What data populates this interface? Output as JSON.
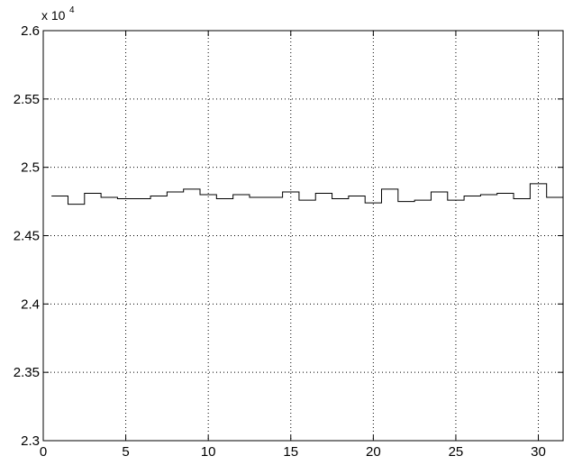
{
  "chart_data": {
    "type": "line",
    "style": "stairs",
    "title": "",
    "xlabel": "",
    "ylabel": "",
    "xlim": [
      0,
      31.5
    ],
    "ylim": [
      23000,
      26000
    ],
    "grid": true,
    "grid_style": "dotted",
    "line_color": "#000000",
    "x_ticks": [
      0,
      5,
      10,
      15,
      20,
      25,
      30
    ],
    "y_ticks": [
      23000,
      23500,
      24000,
      24500,
      25000,
      25500,
      26000
    ],
    "x_tick_labels": [
      "0",
      "5",
      "10",
      "15",
      "20",
      "25",
      "30"
    ],
    "y_tick_labels": [
      "2.3",
      "2.35",
      "2.4",
      "2.45",
      "2.5",
      "2.55",
      "2.6"
    ],
    "y_exponent_base": "x 10",
    "y_exponent_power": "4",
    "series": [
      {
        "x": [
          0.5,
          1.5,
          2.5,
          3.5,
          4.5,
          5.5,
          6.5,
          7.5,
          8.5,
          9.5,
          10.5,
          11.5,
          12.5,
          13.5,
          14.5,
          15.5,
          16.5,
          17.5,
          18.5,
          19.5,
          20.5,
          21.5,
          22.5,
          23.5,
          24.5,
          25.5,
          26.5,
          27.5,
          28.5,
          29.5,
          30.5
        ],
        "values": [
          24790,
          24730,
          24810,
          24780,
          24770,
          24770,
          24790,
          24820,
          24840,
          24800,
          24770,
          24800,
          24780,
          24780,
          24820,
          24760,
          24810,
          24770,
          24790,
          24740,
          24840,
          24750,
          24760,
          24820,
          24760,
          24790,
          24800,
          24810,
          24770,
          24880,
          24780
        ],
        "end_x": 31.5
      }
    ]
  }
}
